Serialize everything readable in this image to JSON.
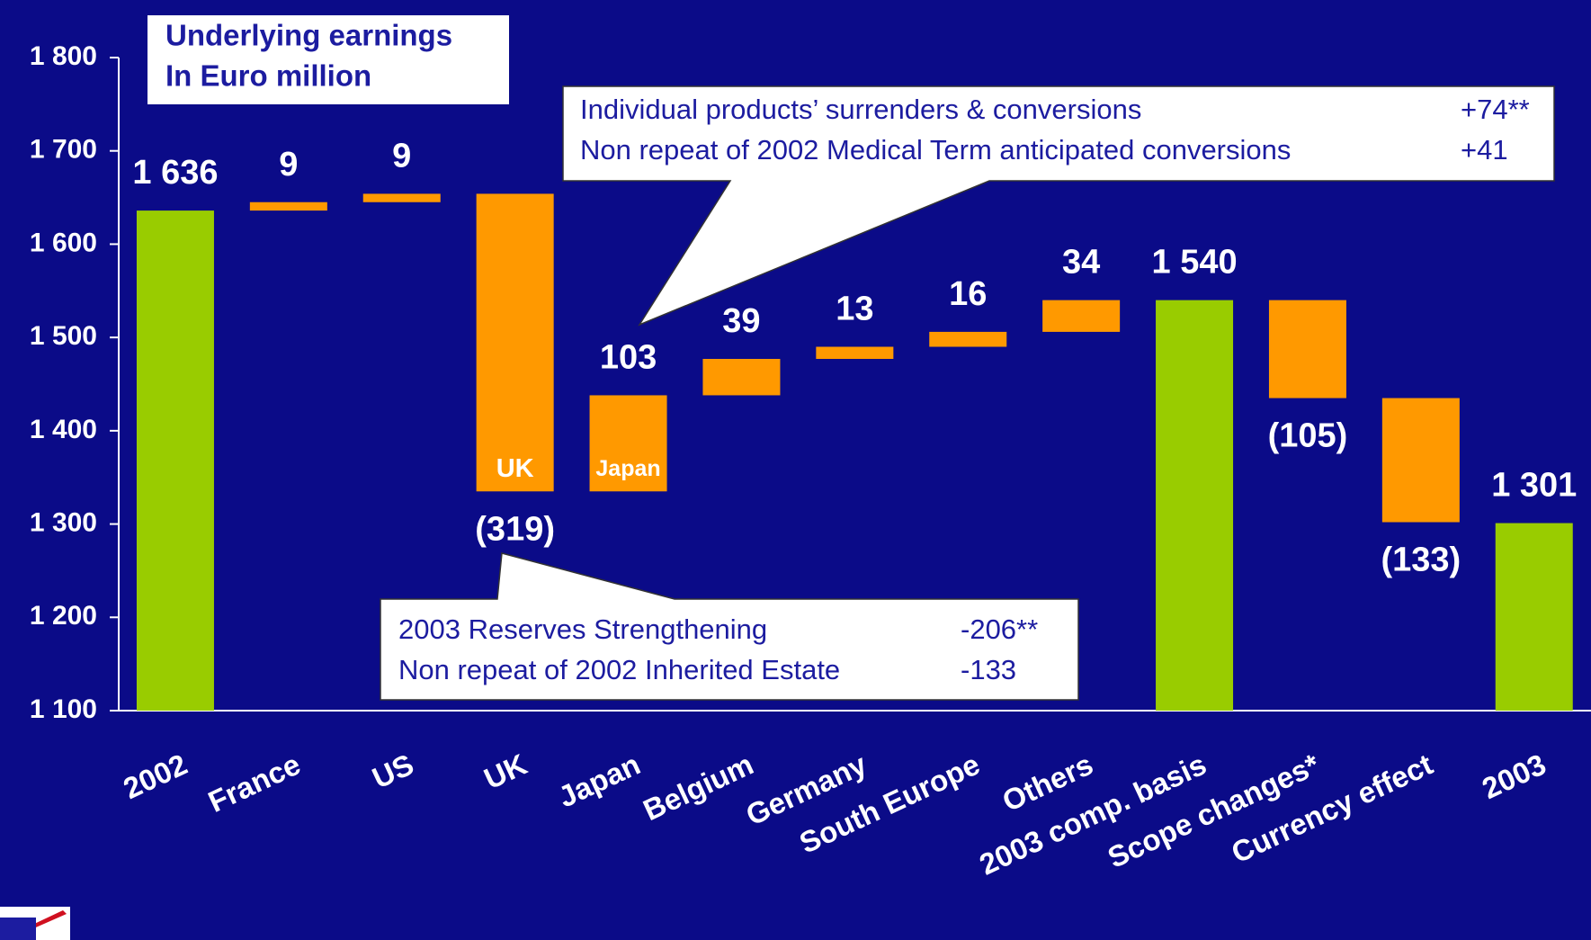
{
  "chart_data": {
    "type": "waterfall",
    "title": [
      "Underlying earnings",
      "In Euro million"
    ],
    "categories": [
      "2002",
      "France",
      "US",
      "UK",
      "Japan",
      "Belgium",
      "Germany",
      "South Europe",
      "Others",
      "2003 comp. basis",
      "Scope changes*",
      "Currency effect",
      "2003"
    ],
    "values": [
      1636,
      9,
      9,
      -319,
      103,
      39,
      13,
      16,
      34,
      1540,
      -105,
      -133,
      1301
    ],
    "value_labels": [
      "1 636",
      "9",
      "9",
      "(319)",
      "103",
      "39",
      "13",
      "16",
      "34",
      "1 540",
      "(105)",
      "(133)",
      "1 301"
    ],
    "measures": [
      "total",
      "relative",
      "relative",
      "relative",
      "relative",
      "relative",
      "relative",
      "relative",
      "relative",
      "total",
      "relative",
      "relative",
      "total"
    ],
    "colors": {
      "total": "#99cc00",
      "relative": "#ff9900"
    },
    "inner_labels": [
      null,
      null,
      null,
      "UK",
      "Japan",
      null,
      null,
      null,
      null,
      null,
      null,
      null,
      null
    ],
    "ylim": [
      1100,
      1800
    ],
    "yticks": [
      {
        "value": 1100,
        "label": "1 100"
      },
      {
        "value": 1200,
        "label": "1 200"
      },
      {
        "value": 1300,
        "label": "1 300"
      },
      {
        "value": 1400,
        "label": "1 400"
      },
      {
        "value": 1500,
        "label": "1 500"
      },
      {
        "value": 1600,
        "label": "1 600"
      },
      {
        "value": 1700,
        "label": "1 700"
      },
      {
        "value": 1800,
        "label": "1 800"
      }
    ],
    "callouts": [
      {
        "rows": [
          [
            "Individual products’ surrenders & conversions",
            "+74**"
          ],
          [
            "Non repeat of 2002 Medical Term anticipated conversions",
            "+41"
          ]
        ]
      },
      {
        "rows": [
          [
            "2003 Reserves Strengthening",
            "-206**"
          ],
          [
            "Non repeat of 2002 Inherited Estate",
            "-133"
          ]
        ]
      }
    ]
  }
}
